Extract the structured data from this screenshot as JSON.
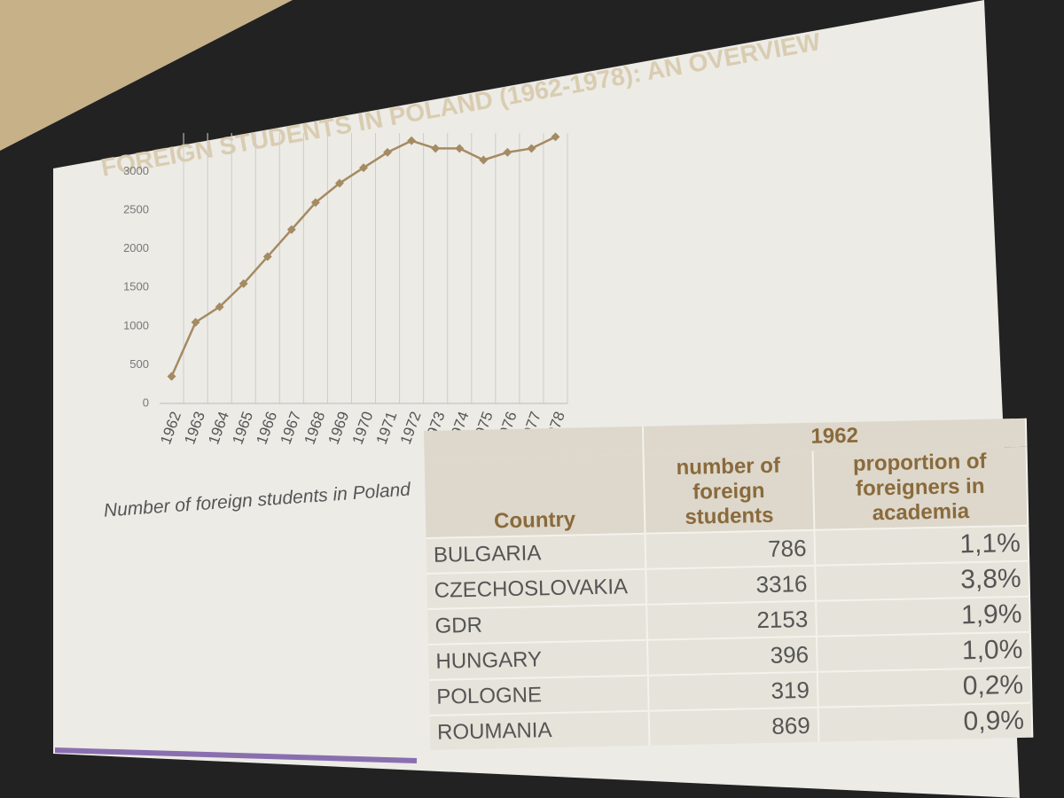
{
  "chart_data": {
    "type": "line",
    "title": "FOREIGN STUDENTS IN POLAND (1962-1978): AN OVERVIEW",
    "x_label": "Number of foreign students in Poland",
    "categories": [
      "1962",
      "1963",
      "1964",
      "1965",
      "1966",
      "1967",
      "1968",
      "1969",
      "1970",
      "1971",
      "1972",
      "1973",
      "1974",
      "1975",
      "1976",
      "1977",
      "1978"
    ],
    "values": [
      350,
      1050,
      1250,
      1550,
      1900,
      2250,
      2600,
      2850,
      3050,
      3250,
      3400,
      3300,
      3300,
      3150,
      3250,
      3300,
      3450
    ],
    "color": "#a58a62",
    "ylim": [
      0,
      3500
    ],
    "yticks": [
      0,
      500,
      1000,
      1500,
      2000,
      2500,
      3000
    ],
    "grid": true
  },
  "table": {
    "group_header": "1962",
    "columns": [
      "Country",
      "number of foreign students",
      "proportion of foreigners in academia"
    ],
    "rows": [
      [
        "BULGARIA",
        "786",
        "1,1%"
      ],
      [
        "CZECHOSLOVAKIA",
        "3316",
        "3,8%"
      ],
      [
        "GDR",
        "2153",
        "1,9%"
      ],
      [
        "HUNGARY",
        "396",
        "1,0%"
      ],
      [
        "POLOGNE",
        "319",
        "0,2%"
      ],
      [
        "ROUMANIA",
        "869",
        "0,9%"
      ]
    ]
  }
}
